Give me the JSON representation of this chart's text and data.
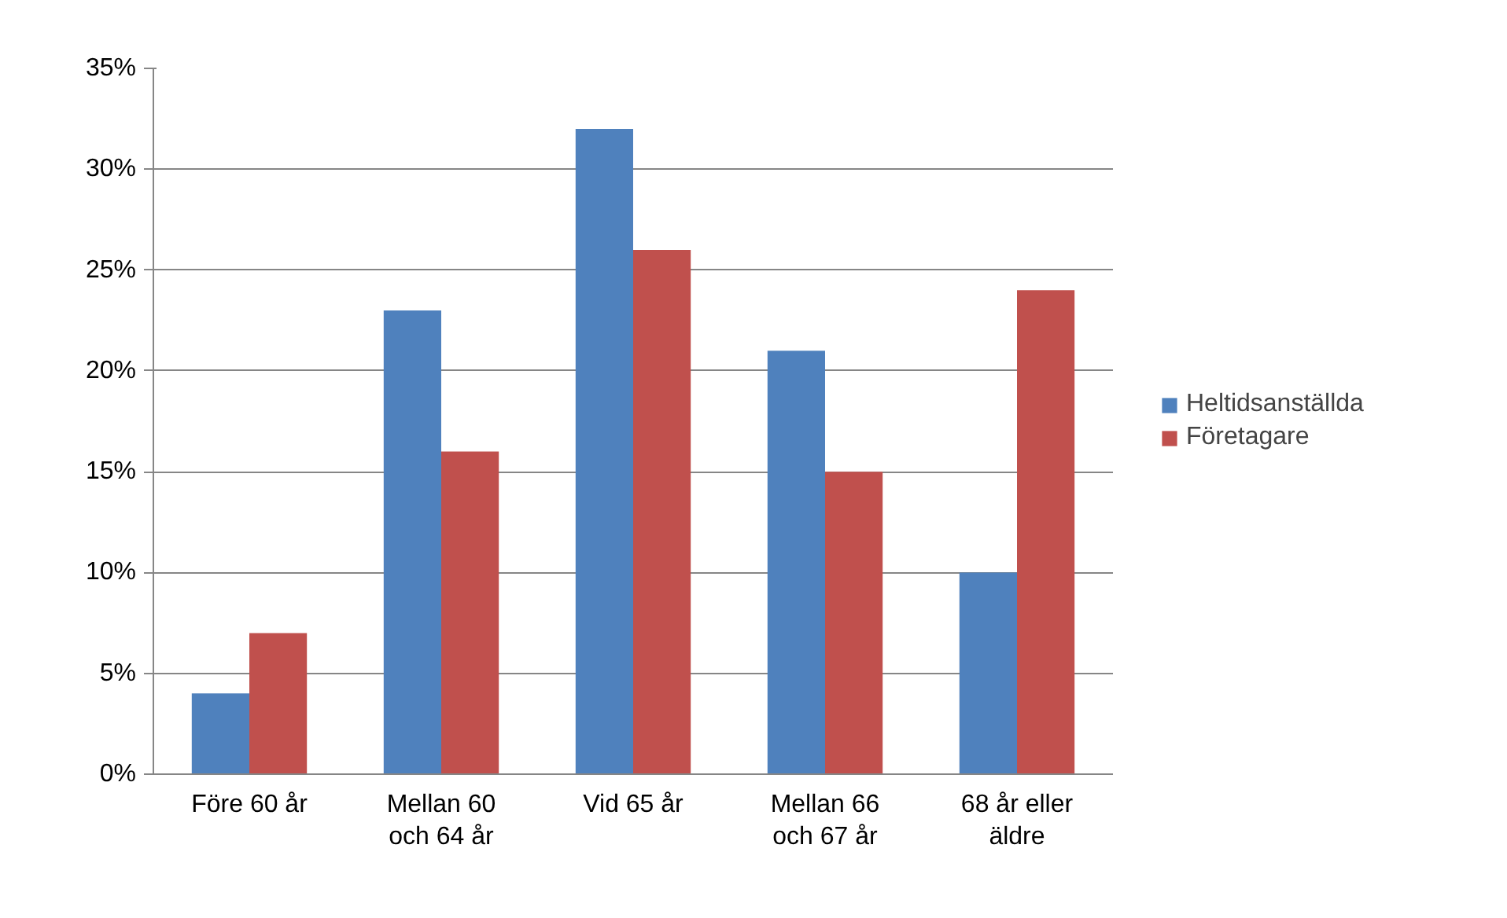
{
  "chart_data": {
    "type": "bar",
    "categories": [
      "Före 60 år",
      "Mellan 60 och 64 år",
      "Vid 65 år",
      "Mellan 66 och 67 år",
      "68 år eller äldre"
    ],
    "series": [
      {
        "name": "Heltidsanställda",
        "color": "#4f81bd",
        "values": [
          4,
          23,
          32,
          21,
          10
        ]
      },
      {
        "name": "Företagare",
        "color": "#c0504d",
        "values": [
          7,
          16,
          26,
          15,
          24
        ]
      }
    ],
    "ylim": [
      0,
      35
    ],
    "yticks": [
      {
        "value": 0,
        "label": "0%"
      },
      {
        "value": 5,
        "label": "5%"
      },
      {
        "value": 10,
        "label": "10%"
      },
      {
        "value": 15,
        "label": "15%"
      },
      {
        "value": 20,
        "label": "20%"
      },
      {
        "value": 25,
        "label": "25%"
      },
      {
        "value": 30,
        "label": "30%"
      },
      {
        "value": 35,
        "label": "35%"
      }
    ],
    "grid": "y",
    "legend": "right"
  }
}
